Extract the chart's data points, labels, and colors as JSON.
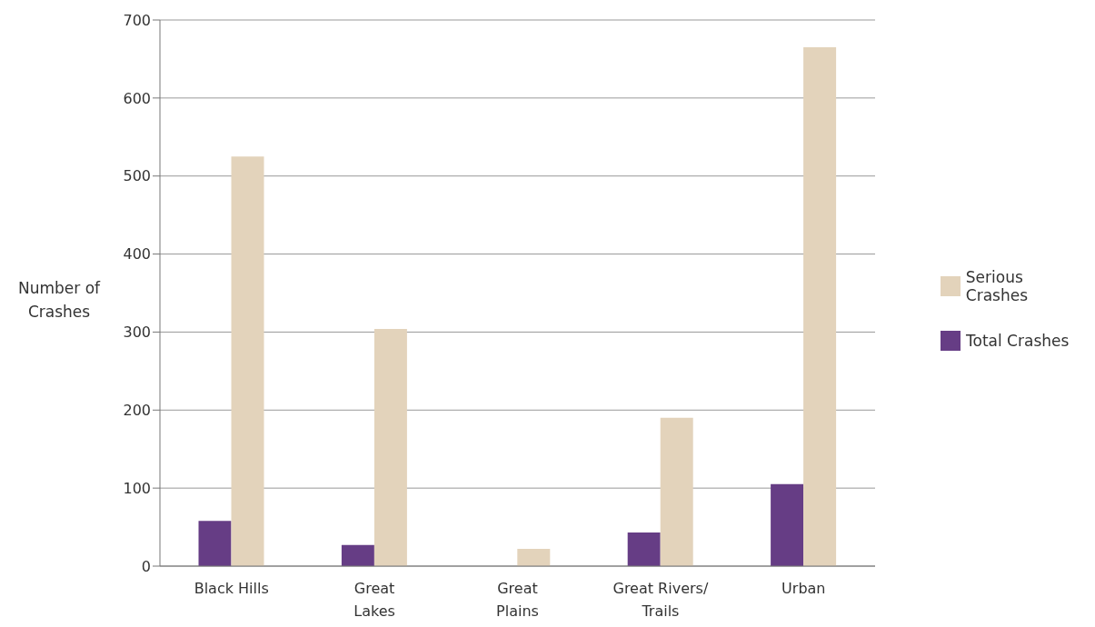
{
  "chart_data": {
    "type": "bar",
    "ylabel": "Number of Crashes",
    "categories": [
      "Black Hills",
      "Great\nLakes",
      "Great\nPlains",
      "Great Rivers/\nTrails",
      "Urban"
    ],
    "series": [
      {
        "name": "Total Crashes",
        "color": "#663d85",
        "values": [
          58,
          27,
          null,
          43,
          105
        ]
      },
      {
        "name": "Serious Crashes",
        "color": "#e3d3bb",
        "values": [
          525,
          304,
          22,
          190,
          665
        ]
      }
    ],
    "ylim": [
      0,
      700
    ],
    "yticks": [
      0,
      100,
      200,
      300,
      400,
      500,
      600,
      700
    ],
    "grid": "y",
    "legend": "right"
  }
}
